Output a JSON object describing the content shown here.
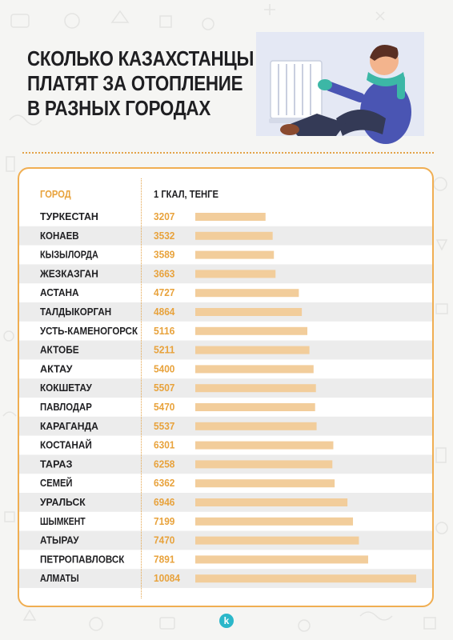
{
  "title": {
    "line1": "СКОЛЬКО КАЗАХСТАНЦЫ",
    "line2": "ПЛАТЯТ ЗА ОТОПЛЕНИЕ",
    "line3": "В РАЗНЫХ ГОРОДАХ"
  },
  "table": {
    "header_city": "ГОРОД",
    "header_value": "1 ГКАЛ, ТЕНГЕ"
  },
  "colors": {
    "accent": "#e8a23b",
    "bar": "#f2cd9b",
    "row_stripe": "#ececec",
    "text": "#1f1f22",
    "card_border": "#f0ae52"
  },
  "illustration": "man-by-radiator-illustration",
  "logo": {
    "icon": "k-logo-icon",
    "letter": "k"
  },
  "chart_data": {
    "type": "bar",
    "orientation": "horizontal",
    "categories": [
      "ТУРКЕСТАН",
      "КОНАЕВ",
      "КЫЗЫЛОРДА",
      "ЖЕЗКАЗГАН",
      "АСТАНА",
      "ТАЛДЫКОРГАН",
      "УСТЬ-КАМЕНОГОРСК",
      "АКТОБЕ",
      "АКТАУ",
      "КОКШЕТАУ",
      "ПАВЛОДАР",
      "КАРАГАНДА",
      "КОСТАНАЙ",
      "ТАРАЗ",
      "СЕМЕЙ",
      "УРАЛЬСК",
      "ШЫМКЕНТ",
      "АТЫРАУ",
      "ПЕТРОПАВЛОВСК",
      "АЛМАТЫ"
    ],
    "values": [
      3207,
      3532,
      3589,
      3663,
      4727,
      4864,
      5116,
      5211,
      5400,
      5507,
      5470,
      5537,
      6301,
      6258,
      6362,
      6946,
      7199,
      7470,
      7891,
      10084
    ],
    "value_labels": [
      "3207",
      "3532",
      "3589",
      "3663",
      "4727",
      "4864",
      "5116",
      "5211",
      "5400",
      "5507",
      "5470",
      "5537",
      "6301",
      "6258",
      "6362",
      "6946",
      "7199",
      "7470",
      "7891",
      "10084"
    ],
    "xlim": [
      0,
      10084
    ],
    "grid": false,
    "legend": "none"
  }
}
